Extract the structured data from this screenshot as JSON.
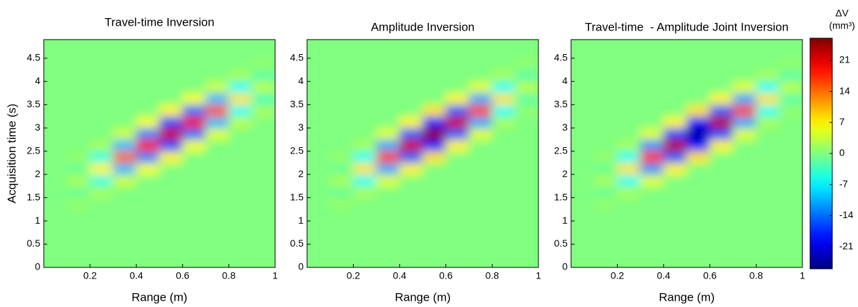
{
  "chart_data": [
    {
      "type": "heatmap",
      "title": "Travel-time Inversion",
      "xlabel": "Range (m)",
      "ylabel": "Acquisition time (s)",
      "x": [
        0.05,
        0.15,
        0.25,
        0.35,
        0.45,
        0.55,
        0.65,
        0.75,
        0.85,
        0.95
      ],
      "y": [
        0.125,
        0.375,
        0.625,
        0.875,
        1.125,
        1.375,
        1.625,
        1.875,
        2.125,
        2.375,
        2.625,
        2.875,
        3.125,
        3.375,
        3.625,
        3.875,
        4.125,
        4.375,
        4.625,
        4.875
      ],
      "z": [
        [
          0,
          0,
          0,
          0,
          0,
          0,
          0,
          0,
          0,
          0
        ],
        [
          0,
          0,
          0,
          0,
          0,
          0,
          0,
          0,
          0,
          0
        ],
        [
          0,
          0,
          0,
          0,
          0,
          0,
          0,
          0,
          0,
          0
        ],
        [
          0,
          0,
          0,
          0,
          0,
          0,
          0,
          0,
          0,
          0
        ],
        [
          0,
          0,
          0,
          0,
          0,
          0,
          0,
          0,
          0,
          0
        ],
        [
          0,
          1,
          0,
          0,
          0,
          0,
          0,
          0,
          0,
          0
        ],
        [
          0,
          -1,
          2,
          0,
          0,
          0,
          0,
          0,
          0,
          0
        ],
        [
          0,
          2,
          -5,
          4,
          0,
          0,
          0,
          0,
          0,
          0
        ],
        [
          0,
          -1,
          7,
          -10,
          6,
          0,
          0,
          0,
          0,
          0
        ],
        [
          0,
          1,
          -5,
          14,
          -13,
          7,
          0,
          0,
          0,
          0
        ],
        [
          0,
          0,
          2,
          -10,
          19,
          -16,
          6,
          0,
          0,
          0
        ],
        [
          0,
          0,
          0,
          4,
          -13,
          22,
          -14,
          5,
          0,
          0
        ],
        [
          0,
          0,
          0,
          0,
          6,
          -16,
          20,
          -10,
          3,
          0
        ],
        [
          0,
          0,
          0,
          0,
          0,
          7,
          -14,
          15,
          -6,
          2
        ],
        [
          0,
          0,
          0,
          0,
          0,
          0,
          6,
          -10,
          8,
          -3
        ],
        [
          0,
          0,
          0,
          0,
          0,
          0,
          0,
          4,
          -6,
          3
        ],
        [
          0,
          0,
          0,
          0,
          0,
          0,
          0,
          0,
          2,
          -2
        ],
        [
          0,
          0,
          0,
          0,
          0,
          0,
          0,
          0,
          0,
          1
        ],
        [
          0,
          0,
          0,
          0,
          0,
          0,
          0,
          0,
          0,
          0
        ],
        [
          0,
          0,
          0,
          0,
          0,
          0,
          0,
          0,
          0,
          0
        ]
      ],
      "xlim": [
        0,
        1
      ],
      "ylim": [
        0,
        4.9
      ],
      "xticks": [
        0.2,
        0.4,
        0.6,
        0.8,
        1
      ],
      "yticks": [
        0,
        0.5,
        1,
        1.5,
        2,
        2.5,
        3,
        3.5,
        4,
        4.5
      ]
    },
    {
      "type": "heatmap",
      "title": "Amplitude Inversion",
      "xlabel": "Range (m)",
      "x": [
        0.05,
        0.15,
        0.25,
        0.35,
        0.45,
        0.55,
        0.65,
        0.75,
        0.85,
        0.95
      ],
      "y": [
        0.125,
        0.375,
        0.625,
        0.875,
        1.125,
        1.375,
        1.625,
        1.875,
        2.125,
        2.375,
        2.625,
        2.875,
        3.125,
        3.375,
        3.625,
        3.875,
        4.125,
        4.375,
        4.625,
        4.875
      ],
      "z": [
        [
          0,
          0,
          0,
          0,
          0,
          0,
          0,
          0,
          0,
          0
        ],
        [
          0,
          0,
          0,
          0,
          0,
          0,
          0,
          0,
          0,
          0
        ],
        [
          0,
          0,
          0,
          0,
          0,
          0,
          0,
          0,
          0,
          0
        ],
        [
          0,
          0,
          0,
          0,
          0,
          0,
          0,
          0,
          0,
          0
        ],
        [
          0,
          0,
          0,
          0,
          0,
          0,
          0,
          0,
          0,
          0
        ],
        [
          0,
          1,
          0,
          0,
          0,
          0,
          0,
          0,
          0,
          0
        ],
        [
          0,
          -1,
          2,
          0,
          0,
          0,
          0,
          0,
          0,
          0
        ],
        [
          0,
          2,
          -6,
          5,
          0,
          0,
          0,
          0,
          0,
          0
        ],
        [
          0,
          -1,
          8,
          -11,
          7,
          0,
          0,
          0,
          0,
          0
        ],
        [
          0,
          1,
          -6,
          16,
          -15,
          8,
          0,
          0,
          0,
          0
        ],
        [
          0,
          0,
          2,
          -11,
          22,
          -18,
          7,
          0,
          0,
          0
        ],
        [
          0,
          0,
          0,
          5,
          -15,
          25,
          -15,
          5,
          0,
          0
        ],
        [
          0,
          0,
          0,
          0,
          7,
          -18,
          22,
          -11,
          2,
          0
        ],
        [
          0,
          0,
          0,
          0,
          0,
          8,
          -15,
          16,
          -6,
          1
        ],
        [
          0,
          0,
          0,
          0,
          0,
          0,
          7,
          -11,
          8,
          -2
        ],
        [
          0,
          0,
          0,
          0,
          0,
          0,
          0,
          5,
          -6,
          3
        ],
        [
          0,
          0,
          0,
          0,
          0,
          0,
          0,
          0,
          2,
          -2
        ],
        [
          0,
          0,
          0,
          0,
          0,
          0,
          0,
          0,
          0,
          1
        ],
        [
          0,
          0,
          0,
          0,
          0,
          0,
          0,
          0,
          0,
          0
        ],
        [
          0,
          0,
          0,
          0,
          0,
          0,
          0,
          0,
          0,
          0
        ]
      ],
      "xlim": [
        0,
        1
      ],
      "ylim": [
        0,
        4.9
      ],
      "xticks": [
        0.2,
        0.4,
        0.6,
        0.8,
        1
      ],
      "yticks": [
        0,
        0.5,
        1,
        1.5,
        2,
        2.5,
        3,
        3.5,
        4,
        4.5
      ]
    },
    {
      "type": "heatmap",
      "title": "Travel-time  - Amplitude Joint Inversion",
      "xlabel": "Range (m)",
      "x": [
        0.05,
        0.15,
        0.25,
        0.35,
        0.45,
        0.55,
        0.65,
        0.75,
        0.85,
        0.95
      ],
      "y": [
        0.125,
        0.375,
        0.625,
        0.875,
        1.125,
        1.375,
        1.625,
        1.875,
        2.125,
        2.375,
        2.625,
        2.875,
        3.125,
        3.375,
        3.625,
        3.875,
        4.125,
        4.375,
        4.625,
        4.875
      ],
      "z": [
        [
          0,
          0,
          0,
          0,
          0,
          0,
          0,
          0,
          0,
          0
        ],
        [
          0,
          0,
          0,
          0,
          0,
          0,
          0,
          0,
          0,
          0
        ],
        [
          0,
          0,
          0,
          0,
          0,
          0,
          0,
          0,
          0,
          0
        ],
        [
          0,
          0,
          0,
          0,
          0,
          0,
          0,
          0,
          0,
          0
        ],
        [
          0,
          0,
          0,
          0,
          0,
          0,
          0,
          0,
          0,
          0
        ],
        [
          0,
          1,
          0,
          0,
          0,
          0,
          0,
          0,
          0,
          0
        ],
        [
          0,
          -1,
          2,
          0,
          0,
          0,
          0,
          0,
          0,
          0
        ],
        [
          0,
          2,
          -6,
          5,
          0,
          0,
          0,
          0,
          0,
          0
        ],
        [
          0,
          -1,
          8,
          -12,
          7,
          0,
          0,
          0,
          0,
          0
        ],
        [
          0,
          1,
          -6,
          17,
          -15,
          8,
          0,
          0,
          0,
          0
        ],
        [
          0,
          0,
          2,
          -12,
          23,
          -19,
          7,
          0,
          0,
          0
        ],
        [
          0,
          0,
          0,
          5,
          -16,
          -24,
          -16,
          5,
          0,
          0
        ],
        [
          0,
          0,
          0,
          0,
          7,
          -19,
          23,
          -11,
          2,
          0
        ],
        [
          0,
          0,
          0,
          0,
          0,
          8,
          -15,
          16,
          -6,
          1
        ],
        [
          0,
          0,
          0,
          0,
          0,
          0,
          7,
          -11,
          8,
          -2
        ],
        [
          0,
          0,
          0,
          0,
          0,
          0,
          0,
          5,
          -6,
          3
        ],
        [
          0,
          0,
          0,
          0,
          0,
          0,
          0,
          0,
          2,
          -2
        ],
        [
          0,
          0,
          0,
          0,
          0,
          0,
          0,
          0,
          0,
          1
        ],
        [
          0,
          0,
          0,
          0,
          0,
          0,
          0,
          0,
          0,
          0
        ],
        [
          0,
          0,
          0,
          0,
          0,
          0,
          0,
          0,
          0,
          0
        ]
      ],
      "xlim": [
        0,
        1
      ],
      "ylim": [
        0,
        4.9
      ],
      "xticks": [
        0.2,
        0.4,
        0.6,
        0.8,
        1
      ],
      "yticks": [
        0,
        0.5,
        1,
        1.5,
        2,
        2.5,
        3,
        3.5,
        4,
        4.5
      ]
    }
  ],
  "colorbar": {
    "title": "ΔV",
    "unit": "(mm³)",
    "colormap": "jet",
    "clim": [
      -26,
      26
    ],
    "ticks": [
      -21,
      -14,
      -7,
      0,
      7,
      14,
      21
    ]
  }
}
